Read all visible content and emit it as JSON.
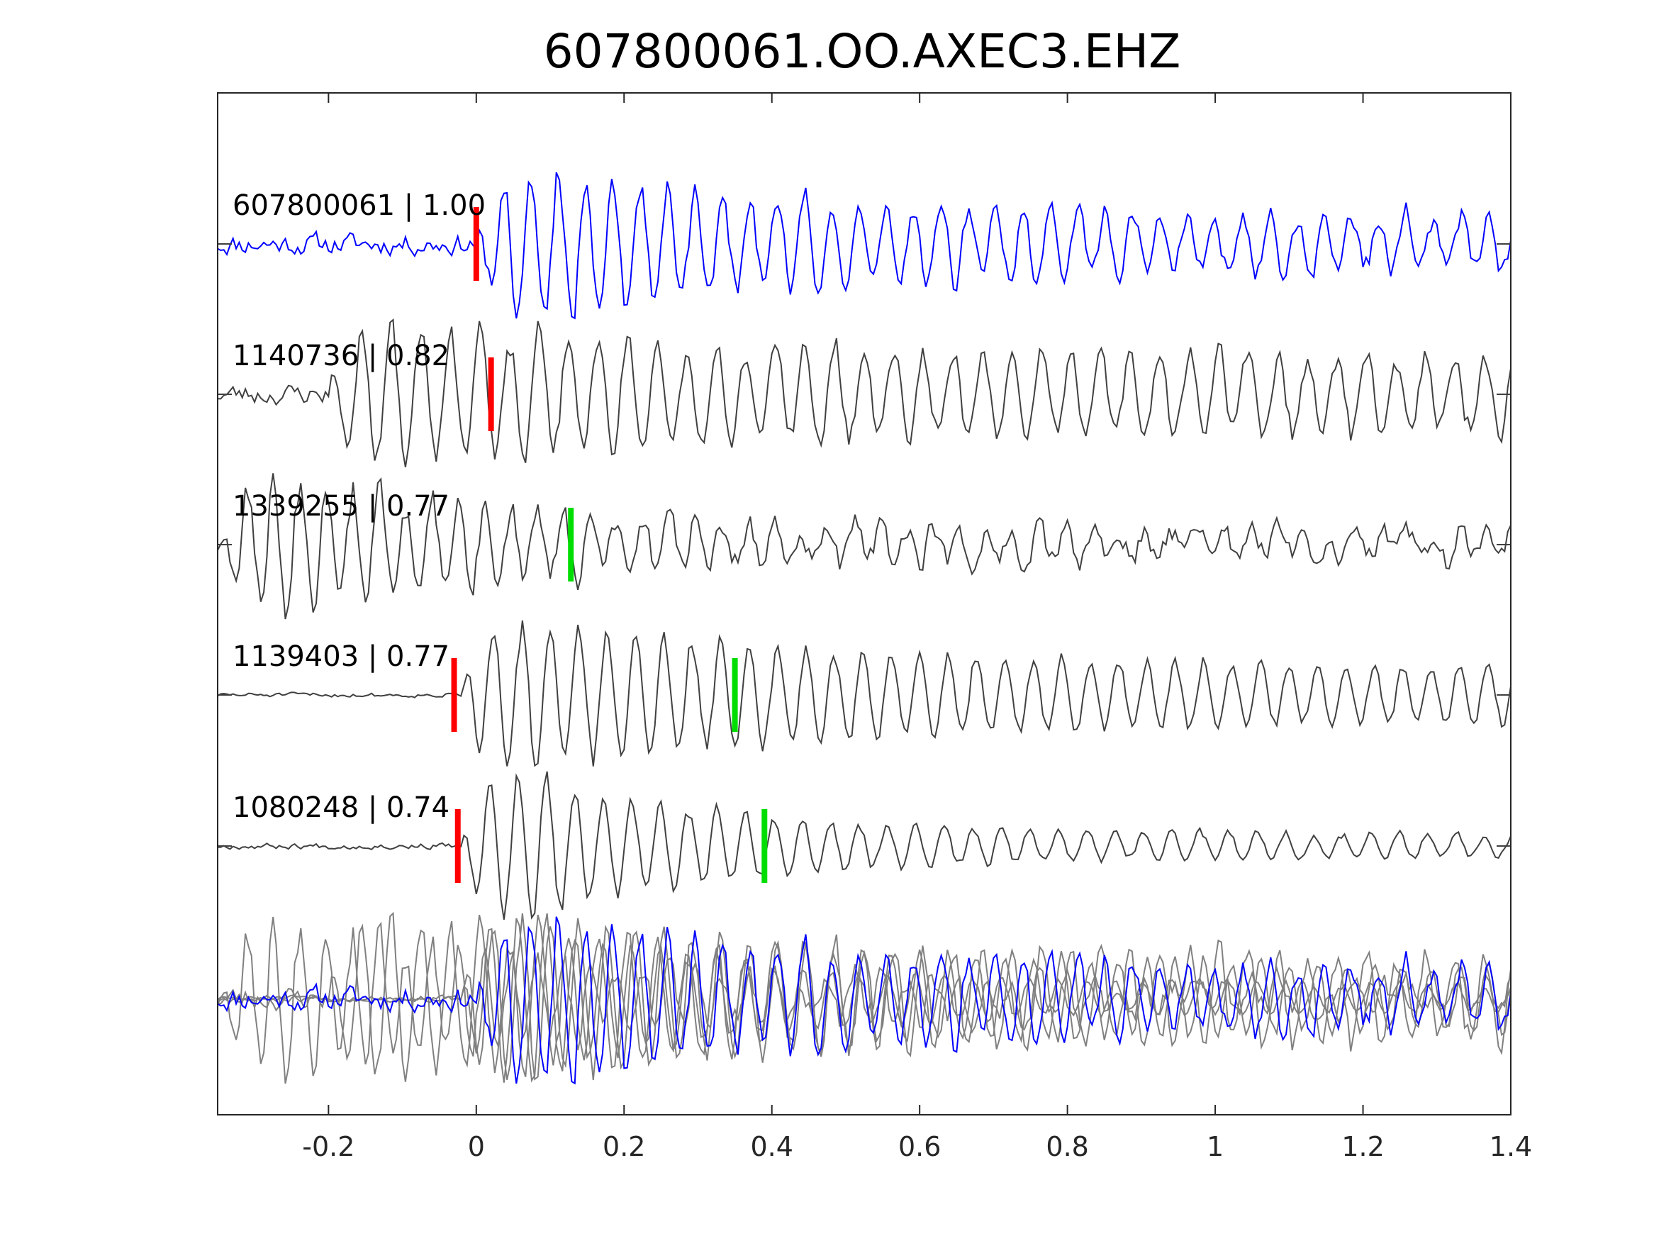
{
  "chart_data": {
    "type": "line",
    "title": "607800061.OO.AXEC3.EHZ",
    "xlabel": "",
    "ylabel": "",
    "xlim": [
      -0.35,
      1.4
    ],
    "xticks": [
      -0.2,
      0,
      0.2,
      0.4,
      0.6,
      0.8,
      1,
      1.2,
      1.4
    ],
    "xtick_labels": [
      "-0.2",
      "0",
      "0.2",
      "0.4",
      "0.6",
      "0.8",
      "1",
      "1.2",
      "1.4"
    ],
    "grid": false,
    "colors": {
      "template": "#0000ff",
      "trace": "#404040",
      "stack_trace": "#808080",
      "p_pick": "#ff0000",
      "s_pick": "#00dd00"
    },
    "series": [
      {
        "name": "607800061 | 1.00",
        "label": "607800061 | 1.00",
        "color": "#0000ff",
        "p_pick": 0.0,
        "s_pick": null,
        "onset": 0.0,
        "noise": 0.22,
        "amp": 1.0,
        "freq": 27,
        "decay": 3.2,
        "coda": 0.3,
        "seed": 11
      },
      {
        "name": "1140736 | 0.82",
        "label": "1140736 | 0.82",
        "color": "#404040",
        "p_pick": 0.02,
        "s_pick": null,
        "onset": -0.2,
        "noise": 0.25,
        "amp": 1.0,
        "freq": 25,
        "decay": 2.0,
        "coda": 0.45,
        "seed": 23
      },
      {
        "name": "1339255 | 0.77",
        "label": "1339255 | 0.77",
        "color": "#404040",
        "p_pick": null,
        "s_pick": 0.128,
        "onset": -0.35,
        "noise": 0.3,
        "amp": 1.0,
        "freq": 28,
        "decay": 2.8,
        "coda": 0.15,
        "seed": 37
      },
      {
        "name": "1139403 | 0.77",
        "label": "1139403 | 0.77",
        "color": "#404040",
        "p_pick": -0.03,
        "s_pick": 0.35,
        "onset": -0.02,
        "noise": 0.05,
        "amp": 1.0,
        "freq": 26,
        "decay": 2.2,
        "coda": 0.3,
        "seed": 51
      },
      {
        "name": "1080248 | 0.74",
        "label": "1080248 | 0.74",
        "color": "#404040",
        "p_pick": -0.025,
        "s_pick": 0.39,
        "onset": -0.02,
        "noise": 0.06,
        "amp": 1.0,
        "freq": 26,
        "decay": 3.5,
        "coda": 0.12,
        "seed": 67
      }
    ],
    "stack": {
      "description_visible": false
    }
  }
}
